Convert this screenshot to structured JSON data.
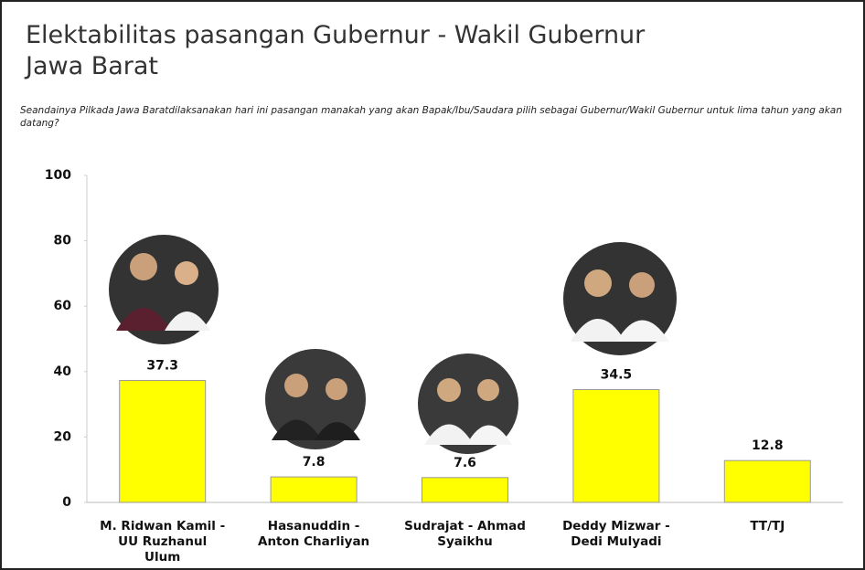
{
  "chart_data": {
    "type": "bar",
    "title": "Elektabilitas pasangan Gubernur - Wakil Gubernur Jawa Barat",
    "subtitle": "Seandainya Pilkada Jawa Baratdilaksanakan hari ini pasangan manakah yang akan Bapak/Ibu/Saudara pilih sebagai Gubernur/Wakil Gubernur untuk lima tahun yang akan datang?",
    "categories": [
      "M. Ridwan Kamil - UU Ruzhanul Ulum",
      "Hasanuddin - Anton Charliyan",
      "Sudrajat - Ahmad Syaikhu",
      "Deddy Mizwar - Dedi Mulyadi",
      "TT/TJ"
    ],
    "values": [
      37.3,
      7.8,
      7.6,
      34.5,
      12.8
    ],
    "color": "#ffff00",
    "ylim": [
      0,
      100
    ],
    "yticks": [
      0,
      20,
      40,
      60,
      80,
      100
    ],
    "grid": false
  }
}
